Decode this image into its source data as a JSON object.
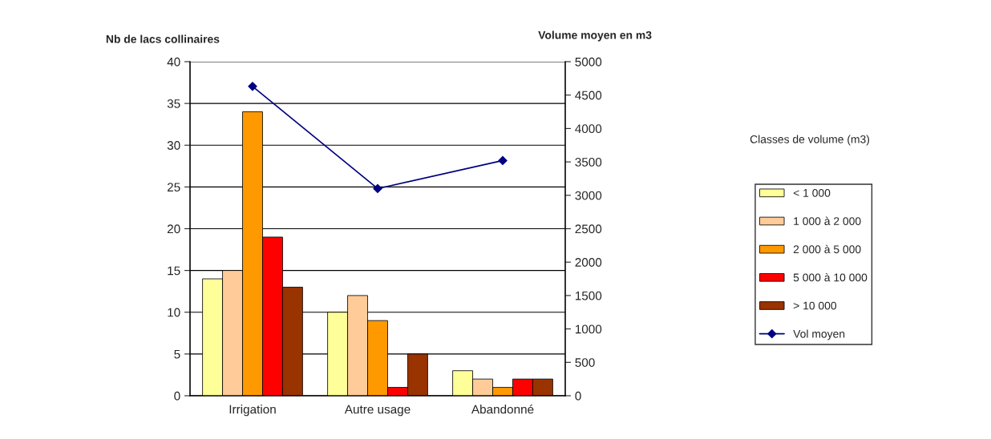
{
  "chart_data": {
    "type": "bar",
    "ylabel": "Nb de lacs collinaires",
    "y2label": "Volume moyen en m3",
    "legend_title": "Classes de volume (m3)",
    "categories": [
      "Irrigation",
      "Autre usage",
      "Abandonné"
    ],
    "series": [
      {
        "name": "< 1 000",
        "color": "#ffff99",
        "values": [
          14,
          10,
          3
        ]
      },
      {
        "name": "1 000 à 2 000",
        "color": "#ffcc99",
        "values": [
          15,
          12,
          2
        ]
      },
      {
        "name": "2 000 à 5 000",
        "color": "#ff9900",
        "values": [
          34,
          9,
          1
        ]
      },
      {
        "name": "5 000 à 10 000",
        "color": "#ff0000",
        "values": [
          19,
          1,
          2
        ]
      },
      {
        "name": "> 10 000",
        "color": "#993300",
        "values": [
          13,
          5,
          2
        ]
      },
      {
        "name": "Vol moyen",
        "type": "line",
        "axis": "y2",
        "color": "#000080",
        "marker": "diamond",
        "values": [
          4630,
          3100,
          3520
        ]
      }
    ],
    "ylim": [
      0,
      40
    ],
    "yticks": [
      0,
      5,
      10,
      15,
      20,
      25,
      30,
      35,
      40
    ],
    "y2lim": [
      0,
      5000
    ],
    "y2ticks": [
      0,
      500,
      1000,
      1500,
      2000,
      2500,
      3000,
      3500,
      4000,
      4500,
      5000
    ],
    "grid": "y",
    "legend": "right"
  }
}
